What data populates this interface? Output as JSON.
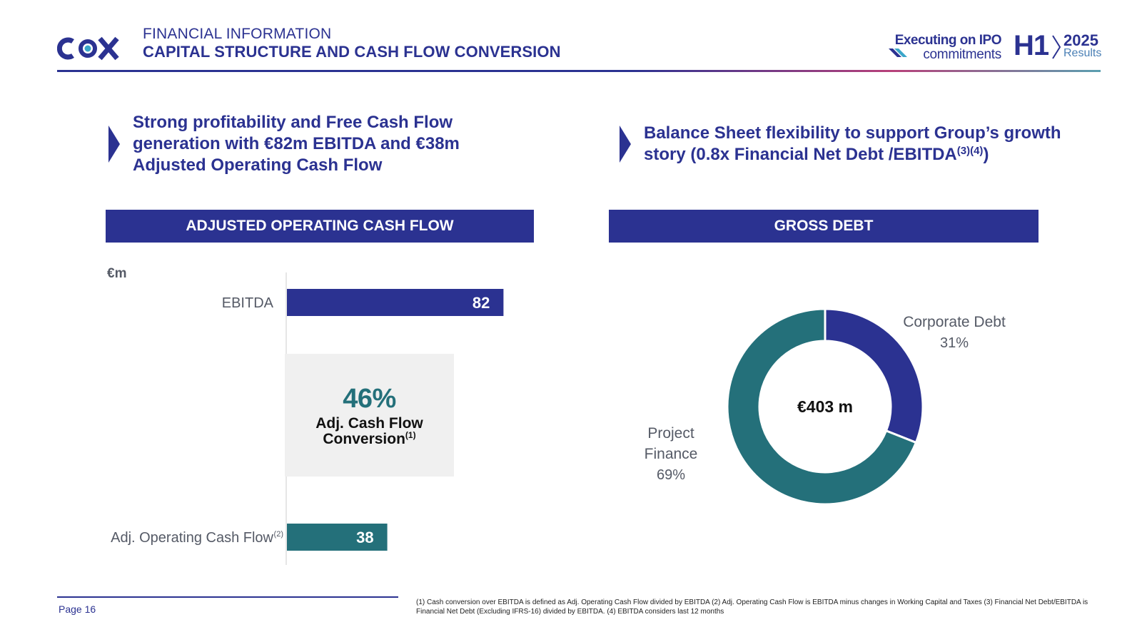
{
  "header": {
    "logo_text": "COX",
    "subtitle": "FINANCIAL INFORMATION",
    "title": "CAPITAL STRUCTURE AND CASH FLOW CONVERSION",
    "brand_line1": "Executing on IPO",
    "brand_line2": "commitments",
    "brand_h1": "H1",
    "brand_year": "2025",
    "brand_results": "Results",
    "colors": {
      "brand_blue": "#2b3291",
      "teal": "#24707a"
    }
  },
  "left_section": {
    "intro_lines": [
      "Strong profitability and Free Cash Flow",
      "generation with €82m EBITDA and €38m",
      "Adjusted Operating Cash Flow"
    ],
    "panel_title": "ADJUSTED OPERATING CASH FLOW",
    "unit": "€m",
    "conversion": {
      "value": "46%",
      "label_line1": "Adj. Cash Flow",
      "label_line2": "Conversion",
      "label_sup": "(1)"
    }
  },
  "right_section": {
    "intro_line1": "Balance Sheet flexibility to support Group’s growth",
    "intro_line2": "story (0.8x Financial Net Debt /EBITDA",
    "intro_sup": "(3)(4)",
    "intro_end": ")",
    "panel_title": "GROSS DEBT"
  },
  "chart_data": [
    {
      "type": "bar",
      "orientation": "horizontal",
      "categories": [
        "EBITDA",
        "Adj. Operating Cash Flow"
      ],
      "category_sups": [
        "",
        "(2)"
      ],
      "values": [
        82,
        38
      ],
      "colors": [
        "#2b3291",
        "#24707a"
      ],
      "unit": "€m",
      "xlim": [
        0,
        100
      ]
    },
    {
      "type": "pie",
      "variant": "donut",
      "center_label": "€403 m",
      "slices": [
        {
          "label": "Corporate Debt",
          "value": 31,
          "value_label": "31%",
          "color": "#2b3291"
        },
        {
          "label_lines": [
            "Project",
            "Finance"
          ],
          "value": 69,
          "value_label": "69%",
          "color": "#24707a"
        }
      ]
    }
  ],
  "footer": {
    "page": "Page 16",
    "footnote": "(1) Cash conversion over EBITDA is defined as Adj. Operating Cash Flow divided by EBITDA (2) Adj. Operating Cash Flow is EBITDA minus changes in Working Capital and Taxes (3) Financial Net Debt/EBITDA is Financial Net Debt (Excluding IFRS-16) divided by EBITDA. (4) EBITDA considers last 12 months"
  }
}
